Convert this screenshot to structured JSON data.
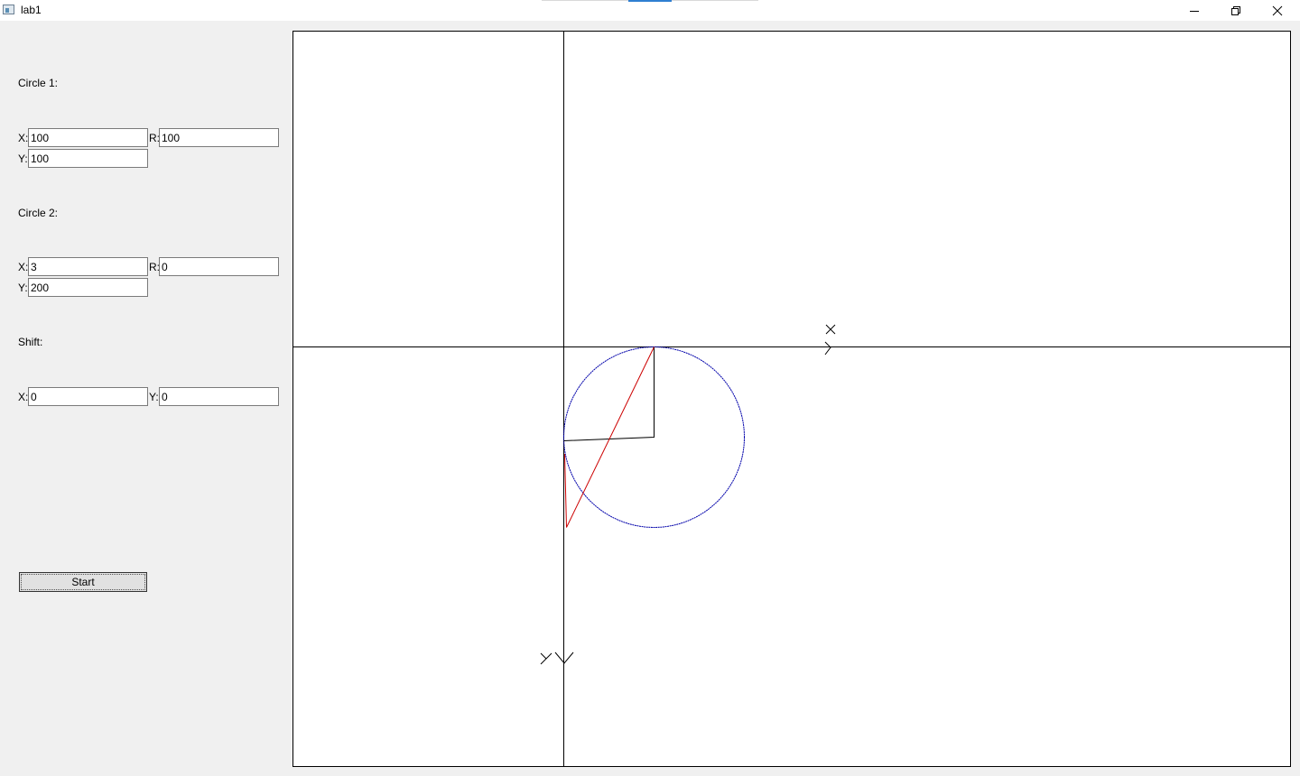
{
  "window": {
    "title": "lab1"
  },
  "circle1": {
    "label": "Circle 1:",
    "x_label": "X:",
    "x": "100",
    "r_label": "R:",
    "r": "100",
    "y_label": "Y:",
    "y": "100"
  },
  "circle2": {
    "label": "Circle 2:",
    "x_label": "X:",
    "x": "3",
    "r_label": "R:",
    "r": "0",
    "y_label": "Y:",
    "y": "200"
  },
  "shift": {
    "label": "Shift:",
    "x_label": "X:",
    "x": "0",
    "y_label": "Y:",
    "y": "0"
  },
  "actions": {
    "start_label": "Start"
  },
  "colors": {
    "circle": "#0000aa",
    "segment": "#cc0000",
    "axes": "#000000"
  }
}
